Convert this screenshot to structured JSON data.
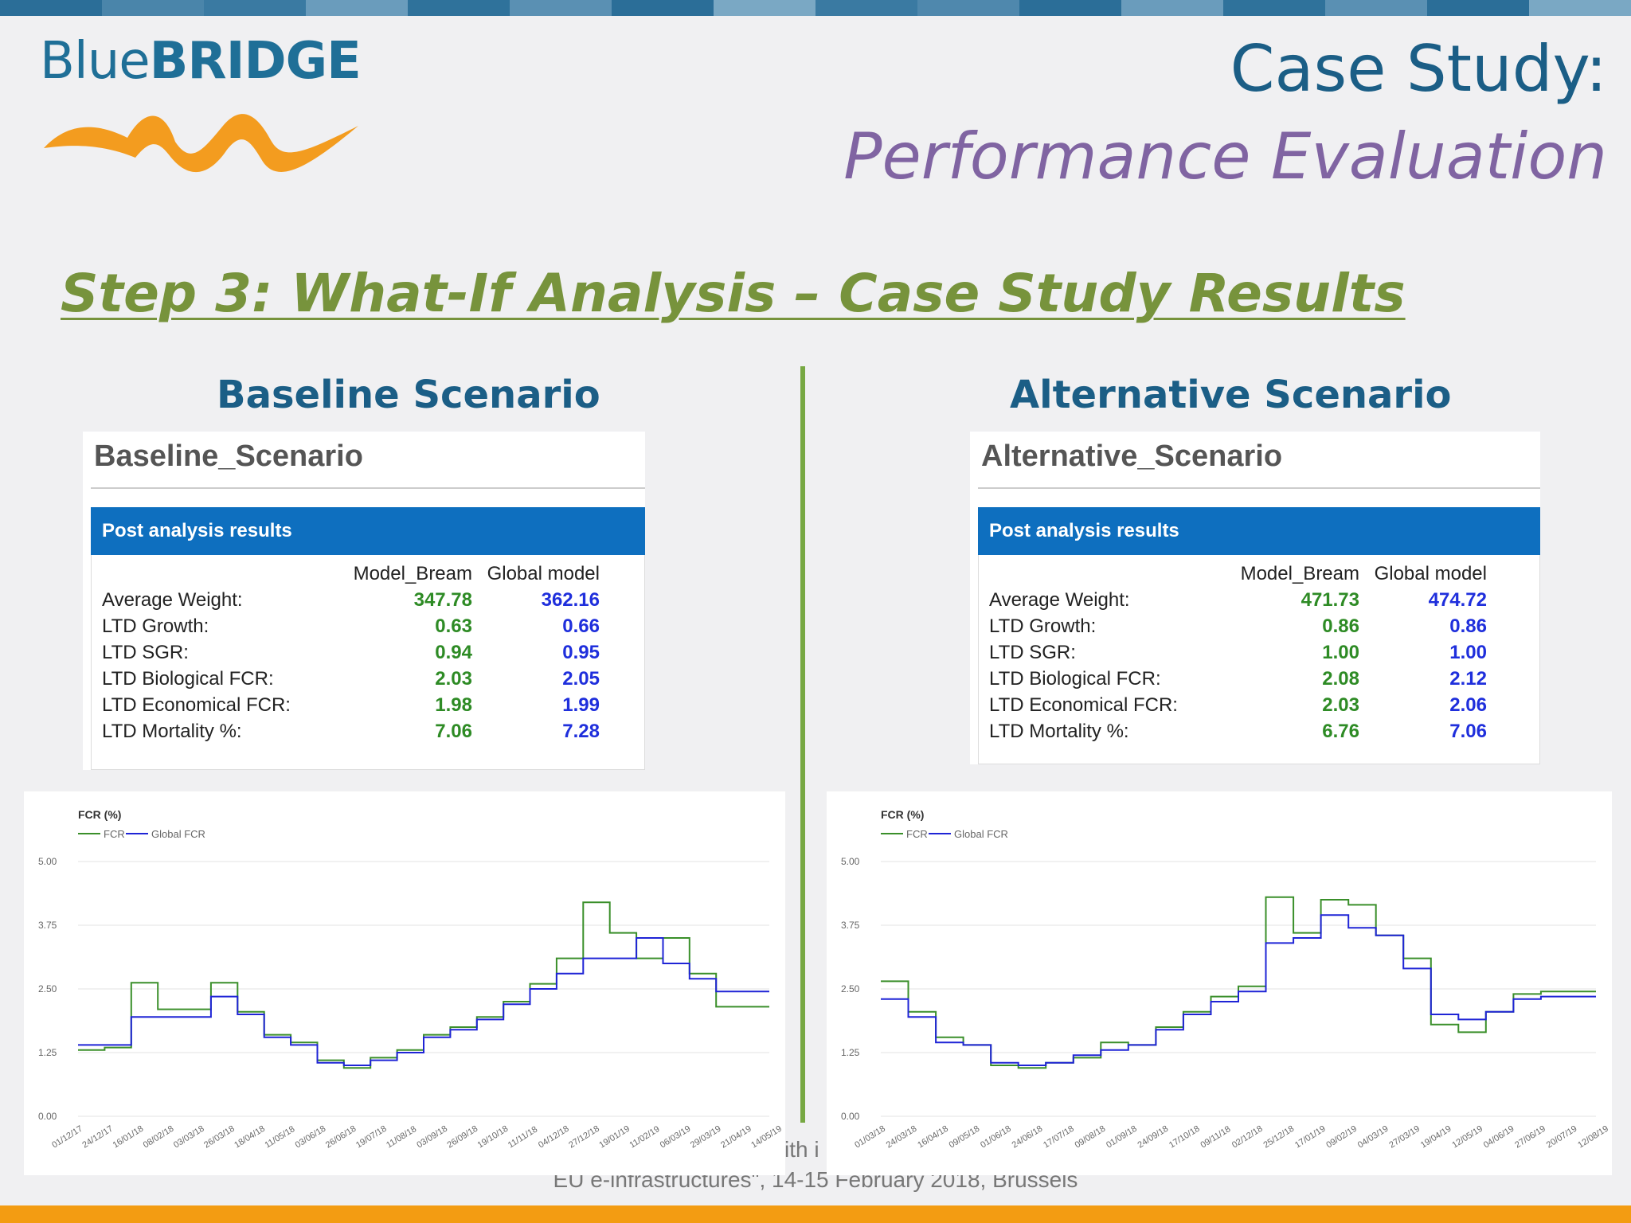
{
  "header": {
    "logo": {
      "part1": "Blue",
      "part2": "BRIDGE"
    },
    "title_line1": "Case Study:",
    "title_line2": "Performance Evaluation",
    "step_title": "Step 3: What-If Analysis – Case Study Results"
  },
  "colors": {
    "accent_green": "#77933c",
    "accent_blue": "#1b5e86",
    "accent_purple": "#8064a2",
    "bar_blue": "#0e6fbf",
    "fcr_green": "#3a8f2a",
    "global_fcr_blue": "#1f24d6"
  },
  "baseline": {
    "heading": "Baseline Scenario",
    "panel_title": "Baseline_Scenario",
    "bar_label": "Post analysis results",
    "col1": "Model_Bream",
    "col2": "Global model",
    "rows": [
      {
        "label": "Average Weight:",
        "v1": "347.78",
        "v2": "362.16"
      },
      {
        "label": "LTD Growth:",
        "v1": "0.63",
        "v2": "0.66"
      },
      {
        "label": "LTD SGR:",
        "v1": "0.94",
        "v2": "0.95"
      },
      {
        "label": "LTD Biological FCR:",
        "v1": "2.03",
        "v2": "2.05"
      },
      {
        "label": "LTD Economical FCR:",
        "v1": "1.98",
        "v2": "1.99"
      },
      {
        "label": "LTD Mortality %:",
        "v1": "7.06",
        "v2": "7.28"
      }
    ]
  },
  "alternative": {
    "heading": "Alternative Scenario",
    "panel_title": "Alternative_Scenario",
    "bar_label": "Post analysis results",
    "col1": "Model_Bream",
    "col2": "Global model",
    "rows": [
      {
        "label": "Average Weight:",
        "v1": "471.73",
        "v2": "474.72"
      },
      {
        "label": "LTD Growth:",
        "v1": "0.86",
        "v2": "0.86"
      },
      {
        "label": "LTD SGR:",
        "v1": "1.00",
        "v2": "1.00"
      },
      {
        "label": "LTD Biological FCR:",
        "v1": "2.08",
        "v2": "2.12"
      },
      {
        "label": "LTD Economical FCR:",
        "v1": "2.03",
        "v2": "2.06"
      },
      {
        "label": "LTD Mortality %:",
        "v1": "6.76",
        "v2": "7.06"
      }
    ]
  },
  "footer": {
    "fragment": "ith i",
    "line": "EU e-infrastructures\", 14-15 February 2018, Brussels"
  },
  "chart_data": [
    {
      "type": "line",
      "title": "FCR (%)",
      "ylim": [
        0,
        5
      ],
      "yticks": [
        "0.00",
        "1.25",
        "2.50",
        "3.75",
        "5.00"
      ],
      "grid": true,
      "legend": "top-left",
      "x_tick_labels": [
        "01/12/17",
        "24/12/17",
        "16/01/18",
        "08/02/18",
        "03/03/18",
        "26/03/18",
        "18/04/18",
        "11/05/18",
        "03/06/18",
        "26/06/18",
        "19/07/18",
        "11/08/18",
        "03/09/18",
        "26/09/18",
        "19/10/18",
        "11/11/18",
        "04/12/18",
        "27/12/18",
        "19/01/19",
        "11/02/19",
        "06/03/19",
        "29/03/19",
        "21/04/19",
        "14/05/19"
      ],
      "series": [
        {
          "name": "FCR",
          "color": "#3a8f2a",
          "values": [
            1.3,
            1.35,
            2.62,
            2.1,
            2.1,
            2.62,
            2.05,
            1.6,
            1.45,
            1.1,
            0.95,
            1.15,
            1.3,
            1.6,
            1.75,
            1.95,
            2.25,
            2.6,
            3.1,
            4.2,
            3.6,
            3.1,
            3.5,
            2.8,
            2.15,
            2.15
          ]
        },
        {
          "name": "Global FCR",
          "color": "#1f24d6",
          "values": [
            1.4,
            1.4,
            1.95,
            1.95,
            1.95,
            2.35,
            2.0,
            1.55,
            1.4,
            1.05,
            1.0,
            1.1,
            1.25,
            1.55,
            1.7,
            1.9,
            2.2,
            2.5,
            2.8,
            3.1,
            3.1,
            3.5,
            3.0,
            2.7,
            2.45,
            2.45
          ]
        }
      ]
    },
    {
      "type": "line",
      "title": "FCR (%)",
      "ylim": [
        0,
        5
      ],
      "yticks": [
        "0.00",
        "1.25",
        "2.50",
        "3.75",
        "5.00"
      ],
      "grid": true,
      "legend": "top-left",
      "x_tick_labels": [
        "01/03/18",
        "24/03/18",
        "16/04/18",
        "09/05/18",
        "01/06/18",
        "24/06/18",
        "17/07/18",
        "09/08/18",
        "01/09/18",
        "24/09/18",
        "17/10/18",
        "09/11/18",
        "02/12/18",
        "25/12/18",
        "17/01/19",
        "09/02/19",
        "04/03/19",
        "27/03/19",
        "19/04/19",
        "12/05/19",
        "04/06/19",
        "27/06/19",
        "20/07/19",
        "12/08/19"
      ],
      "series": [
        {
          "name": "FCR",
          "color": "#3a8f2a",
          "values": [
            2.65,
            2.05,
            1.55,
            1.4,
            1.0,
            0.95,
            1.05,
            1.15,
            1.45,
            1.4,
            1.75,
            2.05,
            2.35,
            2.55,
            4.3,
            3.6,
            4.25,
            4.15,
            3.55,
            3.1,
            1.8,
            1.65,
            2.05,
            2.4,
            2.45,
            2.45
          ]
        },
        {
          "name": "Global FCR",
          "color": "#1f24d6",
          "values": [
            2.3,
            1.95,
            1.45,
            1.4,
            1.05,
            1.0,
            1.05,
            1.2,
            1.3,
            1.4,
            1.7,
            2.0,
            2.25,
            2.45,
            3.4,
            3.5,
            3.95,
            3.7,
            3.55,
            2.9,
            2.0,
            1.9,
            2.05,
            2.3,
            2.35,
            2.35
          ]
        }
      ]
    }
  ]
}
